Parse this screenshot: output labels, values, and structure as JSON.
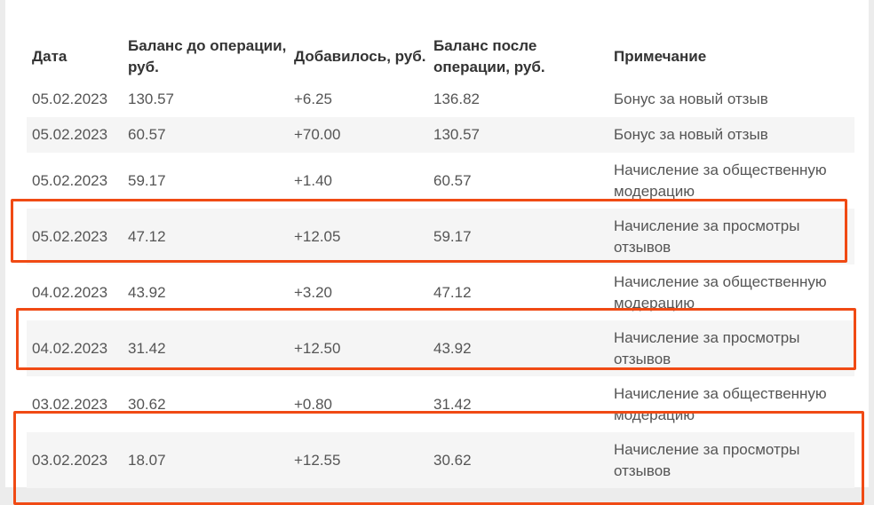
{
  "table": {
    "headers": {
      "date": "Дата",
      "before": "Баланс до операции, руб.",
      "added": "Добавилось, руб.",
      "after": "Баланс после операции, руб.",
      "note": "Примечание"
    },
    "rows": [
      {
        "date": "05.02.2023",
        "before": "130.57",
        "added": "+6.25",
        "after": "136.82",
        "note": "Бонус за новый отзыв"
      },
      {
        "date": "05.02.2023",
        "before": "60.57",
        "added": "+70.00",
        "after": "130.57",
        "note": "Бонус за новый отзыв"
      },
      {
        "date": "05.02.2023",
        "before": "59.17",
        "added": "+1.40",
        "after": "60.57",
        "note": "Начисление за общественную модерацию"
      },
      {
        "date": "05.02.2023",
        "before": "47.12",
        "added": "+12.05",
        "after": "59.17",
        "note": "Начисление за просмотры отзывов"
      },
      {
        "date": "04.02.2023",
        "before": "43.92",
        "added": "+3.20",
        "after": "47.12",
        "note": "Начисление за общественную модерацию"
      },
      {
        "date": "04.02.2023",
        "before": "31.42",
        "added": "+12.50",
        "after": "43.92",
        "note": "Начисление за просмотры отзывов"
      },
      {
        "date": "03.02.2023",
        "before": "30.62",
        "added": "+0.80",
        "after": "31.42",
        "note": "Начисление за общественную модерацию"
      },
      {
        "date": "03.02.2023",
        "before": "18.07",
        "added": "+12.55",
        "after": "30.62",
        "note": "Начисление за просмотры отзывов"
      }
    ]
  },
  "highlight_color": "#f04a14",
  "highlighted_rows": [
    3,
    5,
    7
  ]
}
